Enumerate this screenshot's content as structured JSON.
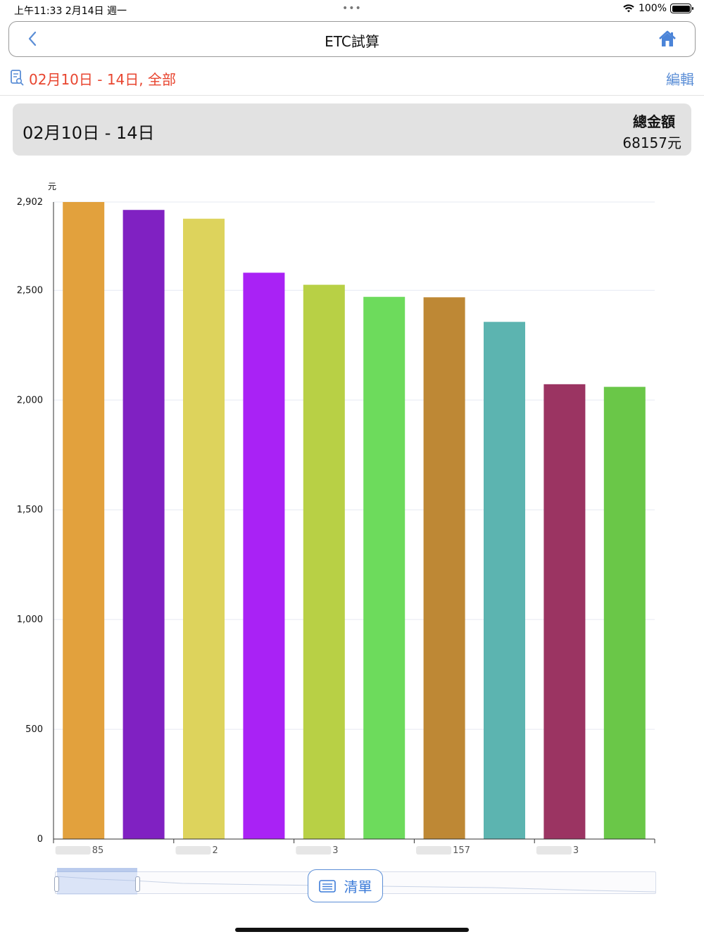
{
  "status_bar": {
    "time": "上午11:33   2月14日 週一",
    "dots": "•••",
    "battery_text": "100%"
  },
  "nav": {
    "title": "ETC試算",
    "back_icon": "chevron-left-icon",
    "home_icon": "home-icon"
  },
  "filter": {
    "text": "02月10日 - 14日, 全部",
    "edit_label": "編輯"
  },
  "summary": {
    "range": "02月10日 - 14日",
    "total_label": "總金額",
    "total_value": "68157元"
  },
  "chart_data": {
    "type": "bar",
    "ylabel": "元",
    "ylim": [
      0,
      2902
    ],
    "yticks": [
      0,
      500,
      1000,
      1500,
      2000,
      2500,
      2902
    ],
    "ytick_labels": [
      "0",
      "500",
      "1,000",
      "1,500",
      "2,000",
      "2,500",
      "2,902"
    ],
    "categories": [
      "85",
      "",
      "2",
      "",
      "3",
      "",
      "157",
      "",
      "3",
      ""
    ],
    "values": [
      2902,
      2866,
      2826,
      2580,
      2525,
      2470,
      2468,
      2356,
      2072,
      2060
    ],
    "colors": [
      "#e2a13d",
      "#8021c2",
      "#ddd35c",
      "#a922f5",
      "#b8d045",
      "#6ddb5c",
      "#be8835",
      "#5cb4b0",
      "#9b3462",
      "#6ac748"
    ],
    "grid": true
  },
  "list_button": {
    "label": "清單"
  }
}
